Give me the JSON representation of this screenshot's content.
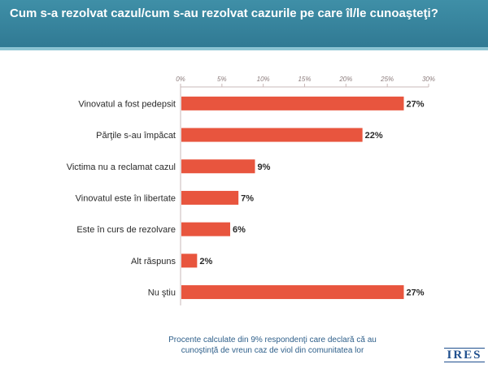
{
  "header": {
    "title": "Cum s-a rezolvat cazul/cum s-au rezolvat cazurile pe care îl/le cunoaşteţi?"
  },
  "chart_data": {
    "type": "bar",
    "orientation": "horizontal",
    "title": "Cum s-a rezolvat cazul/cum s-au rezolvat cazurile pe care îl/le cunoaşteţi?",
    "xlabel": "",
    "ylabel": "",
    "xlim": [
      0,
      30
    ],
    "tick_labels": [
      "0%",
      "5%",
      "10%",
      "15%",
      "20%",
      "25%",
      "30%"
    ],
    "ticks": [
      0,
      5,
      10,
      15,
      20,
      25,
      30
    ],
    "grid": false,
    "legend": "none",
    "bar_color": "#e8553e",
    "categories": [
      "Vinovatul a fost pedepsit",
      "Părţile s-au împăcat",
      "Victima nu a reclamat cazul",
      "Vinovatul este în libertate",
      "Este în curs de rezolvare",
      "Alt răspuns",
      "Nu ştiu"
    ],
    "values": [
      27,
      22,
      9,
      7,
      6,
      2,
      27
    ],
    "value_labels": [
      "27%",
      "22%",
      "9%",
      "7%",
      "6%",
      "2%",
      "27%"
    ]
  },
  "footnote": "Procente calculate din 9% respondenţi care declară că au cunoştinţă de vreun caz de viol din comunitatea lor",
  "logo": {
    "text": "IRES",
    "color": "#1f4f8e"
  }
}
